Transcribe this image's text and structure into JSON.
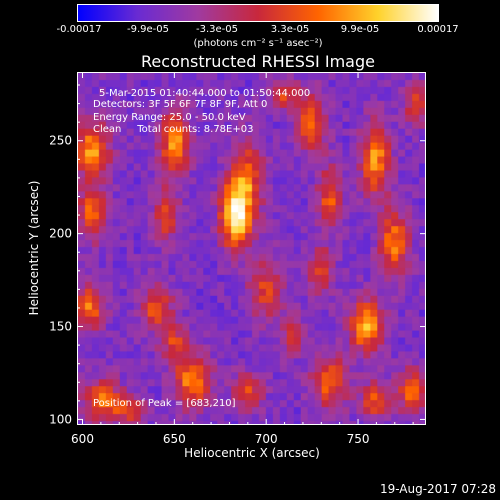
{
  "colorbar": {
    "ticks": [
      "-0.00017",
      "-9.9e-05",
      "-3.3e-05",
      "3.3e-05",
      "9.9e-05",
      "0.00017"
    ],
    "units_text": "(photons cm⁻² s⁻¹ asec⁻²)",
    "colors": [
      "#0000ff",
      "#6a2bd2",
      "#a03aa0",
      "#c8283c",
      "#ff6400",
      "#ffd22b",
      "#ffffff"
    ]
  },
  "chart_data": {
    "type": "heatmap",
    "title": "Reconstructed RHESSI Image",
    "xlabel": "Heliocentric X (arcsec)",
    "ylabel": "Heliocentric Y (arcsec)",
    "xlim": [
      597,
      787
    ],
    "ylim": [
      97,
      287
    ],
    "xticks": [
      600,
      650,
      700,
      750
    ],
    "yticks": [
      100,
      150,
      200,
      250
    ],
    "colorbar_range": [
      -0.00017,
      0.00017
    ],
    "peak": {
      "x": 683,
      "y": 210
    },
    "annotations": {
      "time_range": "5-Mar-2015 01:40:44.000 to 01:50:44.000",
      "detectors": "Detectors: 3F 5F 6F 7F 8F 9F, Att 0",
      "energy": "Energy Range: 25.0 - 50.0 keV",
      "clean": "Clean     Total counts: 8.78E+03",
      "peak_text": "Position of Peak = [683,210]"
    }
  },
  "timestamp": "19-Aug-2017 07:28"
}
